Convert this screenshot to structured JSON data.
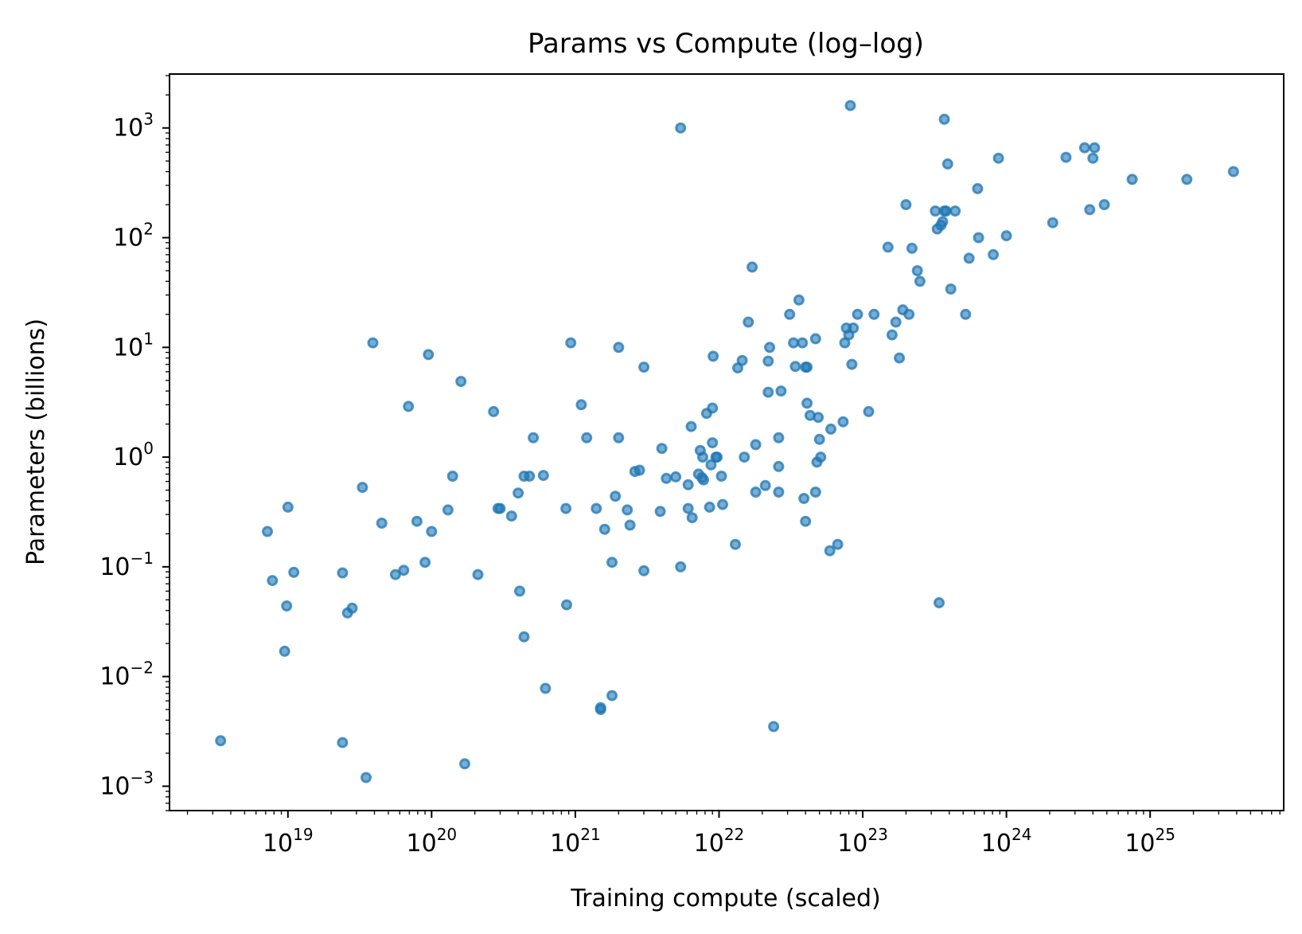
{
  "chart_data": {
    "type": "scatter",
    "title": "Params vs Compute (log–log)",
    "xlabel": "Training compute (scaled)",
    "ylabel": "Parameters (billions)",
    "x_scale": "log",
    "y_scale": "log",
    "xlim": [
      1.5e+18,
      8.5e+25
    ],
    "ylim": [
      0.0006,
      3100.0
    ],
    "grid": false,
    "legend": "none",
    "marker_color": "#1f77b4",
    "x_ticks": [
      {
        "base": "10",
        "exp": "19",
        "value": 1e+19
      },
      {
        "base": "10",
        "exp": "20",
        "value": 1e+20
      },
      {
        "base": "10",
        "exp": "21",
        "value": 1e+21
      },
      {
        "base": "10",
        "exp": "22",
        "value": 1e+22
      },
      {
        "base": "10",
        "exp": "23",
        "value": 1e+23
      },
      {
        "base": "10",
        "exp": "24",
        "value": 1e+24
      },
      {
        "base": "10",
        "exp": "25",
        "value": 1e+25
      }
    ],
    "y_ticks": [
      {
        "base": "10",
        "exp": "−3",
        "value": 0.001
      },
      {
        "base": "10",
        "exp": "−2",
        "value": 0.01
      },
      {
        "base": "10",
        "exp": "−1",
        "value": 0.1
      },
      {
        "base": "10",
        "exp": "0",
        "value": 1
      },
      {
        "base": "10",
        "exp": "1",
        "value": 10
      },
      {
        "base": "10",
        "exp": "2",
        "value": 100
      },
      {
        "base": "10",
        "exp": "3",
        "value": 1000
      }
    ],
    "points": [
      [
        3.4e+18,
        0.0026
      ],
      [
        7.2e+18,
        0.21
      ],
      [
        7.8e+18,
        0.075
      ],
      [
        9.5e+18,
        0.017
      ],
      [
        9.8e+18,
        0.044
      ],
      [
        1e+19,
        0.35
      ],
      [
        1.1e+19,
        0.089
      ],
      [
        2.4e+19,
        0.0025
      ],
      [
        2.4e+19,
        0.088
      ],
      [
        2.6e+19,
        0.038
      ],
      [
        2.8e+19,
        0.042
      ],
      [
        3.3e+19,
        0.53
      ],
      [
        3.5e+19,
        0.0012
      ],
      [
        3.9e+19,
        11
      ],
      [
        4.5e+19,
        0.25
      ],
      [
        5.6e+19,
        0.085
      ],
      [
        6.4e+19,
        0.093
      ],
      [
        6.9e+19,
        2.9
      ],
      [
        7.9e+19,
        0.26
      ],
      [
        9e+19,
        0.11
      ],
      [
        9.5e+19,
        8.6
      ],
      [
        1e+20,
        0.21
      ],
      [
        1.3e+20,
        0.33
      ],
      [
        1.4e+20,
        0.67
      ],
      [
        1.6e+20,
        4.9
      ],
      [
        1.7e+20,
        0.0016
      ],
      [
        2.1e+20,
        0.085
      ],
      [
        2.7e+20,
        2.6
      ],
      [
        2.9e+20,
        0.34
      ],
      [
        3e+20,
        0.34
      ],
      [
        3.6e+20,
        0.29
      ],
      [
        4e+20,
        0.47
      ],
      [
        4.1e+20,
        0.06
      ],
      [
        4.4e+20,
        0.67
      ],
      [
        4.4e+20,
        0.023
      ],
      [
        4.8e+20,
        0.67
      ],
      [
        5.1e+20,
        1.5
      ],
      [
        6e+20,
        0.68
      ],
      [
        6.2e+20,
        0.0078
      ],
      [
        8.6e+20,
        0.34
      ],
      [
        8.7e+20,
        0.045
      ],
      [
        9.3e+20,
        11
      ],
      [
        1.1e+21,
        3.0
      ],
      [
        1.2e+21,
        1.5
      ],
      [
        1.4e+21,
        0.34
      ],
      [
        1.5e+21,
        0.005
      ],
      [
        1.5e+21,
        0.0052
      ],
      [
        1.6e+21,
        0.22
      ],
      [
        1.8e+21,
        0.0067
      ],
      [
        1.8e+21,
        0.11
      ],
      [
        1.9e+21,
        0.44
      ],
      [
        2e+21,
        1.5
      ],
      [
        2e+21,
        10
      ],
      [
        2.3e+21,
        0.33
      ],
      [
        2.4e+21,
        0.24
      ],
      [
        2.6e+21,
        0.74
      ],
      [
        2.8e+21,
        0.76
      ],
      [
        3e+21,
        6.6
      ],
      [
        3e+21,
        0.092
      ],
      [
        3.9e+21,
        0.32
      ],
      [
        4e+21,
        1.2
      ],
      [
        4.3e+21,
        0.64
      ],
      [
        5e+21,
        0.66
      ],
      [
        5.4e+21,
        0.1
      ],
      [
        5.4e+21,
        1000
      ],
      [
        6.1e+21,
        0.34
      ],
      [
        6.1e+21,
        0.56
      ],
      [
        6.4e+21,
        1.9
      ],
      [
        6.5e+21,
        0.28
      ],
      [
        7.2e+21,
        0.7
      ],
      [
        7.4e+21,
        1.15
      ],
      [
        7.6e+21,
        0.65
      ],
      [
        7.7e+21,
        1.0
      ],
      [
        7.8e+21,
        0.62
      ],
      [
        8.2e+21,
        2.5
      ],
      [
        8.6e+21,
        0.35
      ],
      [
        8.8e+21,
        0.85
      ],
      [
        9e+21,
        2.8
      ],
      [
        9e+21,
        1.35
      ],
      [
        9.1e+21,
        8.3
      ],
      [
        9.5e+21,
        1.0
      ],
      [
        9.7e+21,
        1.0
      ],
      [
        1.04e+22,
        0.67
      ],
      [
        1.06e+22,
        0.37
      ],
      [
        1.3e+22,
        0.16
      ],
      [
        1.35e+22,
        6.5
      ],
      [
        1.45e+22,
        7.6
      ],
      [
        1.5e+22,
        1.0
      ],
      [
        1.6e+22,
        17
      ],
      [
        1.7e+22,
        54
      ],
      [
        1.8e+22,
        0.48
      ],
      [
        1.8e+22,
        1.3
      ],
      [
        2.1e+22,
        0.55
      ],
      [
        2.2e+22,
        3.9
      ],
      [
        2.2e+22,
        7.5
      ],
      [
        2.25e+22,
        10
      ],
      [
        2.4e+22,
        0.0035
      ],
      [
        2.6e+22,
        0.48
      ],
      [
        2.6e+22,
        1.5
      ],
      [
        2.6e+22,
        0.82
      ],
      [
        2.7e+22,
        4.0
      ],
      [
        3.1e+22,
        20
      ],
      [
        3.3e+22,
        11
      ],
      [
        3.4e+22,
        6.7
      ],
      [
        3.6e+22,
        27
      ],
      [
        3.8e+22,
        11
      ],
      [
        3.9e+22,
        0.42
      ],
      [
        4e+22,
        0.26
      ],
      [
        4e+22,
        6.6
      ],
      [
        4.1e+22,
        6.6
      ],
      [
        4.1e+22,
        3.1
      ],
      [
        4.3e+22,
        2.4
      ],
      [
        4.7e+22,
        12
      ],
      [
        4.7e+22,
        0.48
      ],
      [
        4.8e+22,
        0.9
      ],
      [
        4.9e+22,
        2.3
      ],
      [
        5e+22,
        1.45
      ],
      [
        5.1e+22,
        1.0
      ],
      [
        5.9e+22,
        0.14
      ],
      [
        6e+22,
        1.8
      ],
      [
        6.7e+22,
        0.16
      ],
      [
        7.3e+22,
        2.1
      ],
      [
        7.5e+22,
        11
      ],
      [
        7.7e+22,
        15
      ],
      [
        8e+22,
        13
      ],
      [
        8.2e+22,
        1600
      ],
      [
        8.4e+22,
        7.0
      ],
      [
        8.6e+22,
        15
      ],
      [
        9.2e+22,
        20
      ],
      [
        1.1e+23,
        2.6
      ],
      [
        1.2e+23,
        20
      ],
      [
        1.5e+23,
        82
      ],
      [
        1.6e+23,
        13
      ],
      [
        1.7e+23,
        17
      ],
      [
        1.8e+23,
        8.0
      ],
      [
        1.9e+23,
        22
      ],
      [
        2e+23,
        200
      ],
      [
        2.1e+23,
        20
      ],
      [
        2.2e+23,
        80
      ],
      [
        2.4e+23,
        50
      ],
      [
        2.5e+23,
        40
      ],
      [
        3.2e+23,
        175
      ],
      [
        3.3e+23,
        120
      ],
      [
        3.4e+23,
        0.047
      ],
      [
        3.5e+23,
        130
      ],
      [
        3.6e+23,
        140
      ],
      [
        3.7e+23,
        1200
      ],
      [
        3.7e+23,
        175
      ],
      [
        3.8e+23,
        175
      ],
      [
        3.9e+23,
        470
      ],
      [
        4.1e+23,
        34
      ],
      [
        4.4e+23,
        175
      ],
      [
        5.2e+23,
        20
      ],
      [
        5.5e+23,
        65
      ],
      [
        6.3e+23,
        280
      ],
      [
        6.4e+23,
        100
      ],
      [
        8.1e+23,
        70
      ],
      [
        8.8e+23,
        530
      ],
      [
        1e+24,
        104
      ],
      [
        2.1e+24,
        137
      ],
      [
        2.6e+24,
        540
      ],
      [
        3.5e+24,
        660
      ],
      [
        3.8e+24,
        180
      ],
      [
        4e+24,
        530
      ],
      [
        4.1e+24,
        660
      ],
      [
        4.8e+24,
        200
      ],
      [
        7.5e+24,
        340
      ],
      [
        1.8e+25,
        340
      ],
      [
        3.8e+25,
        400
      ]
    ]
  }
}
